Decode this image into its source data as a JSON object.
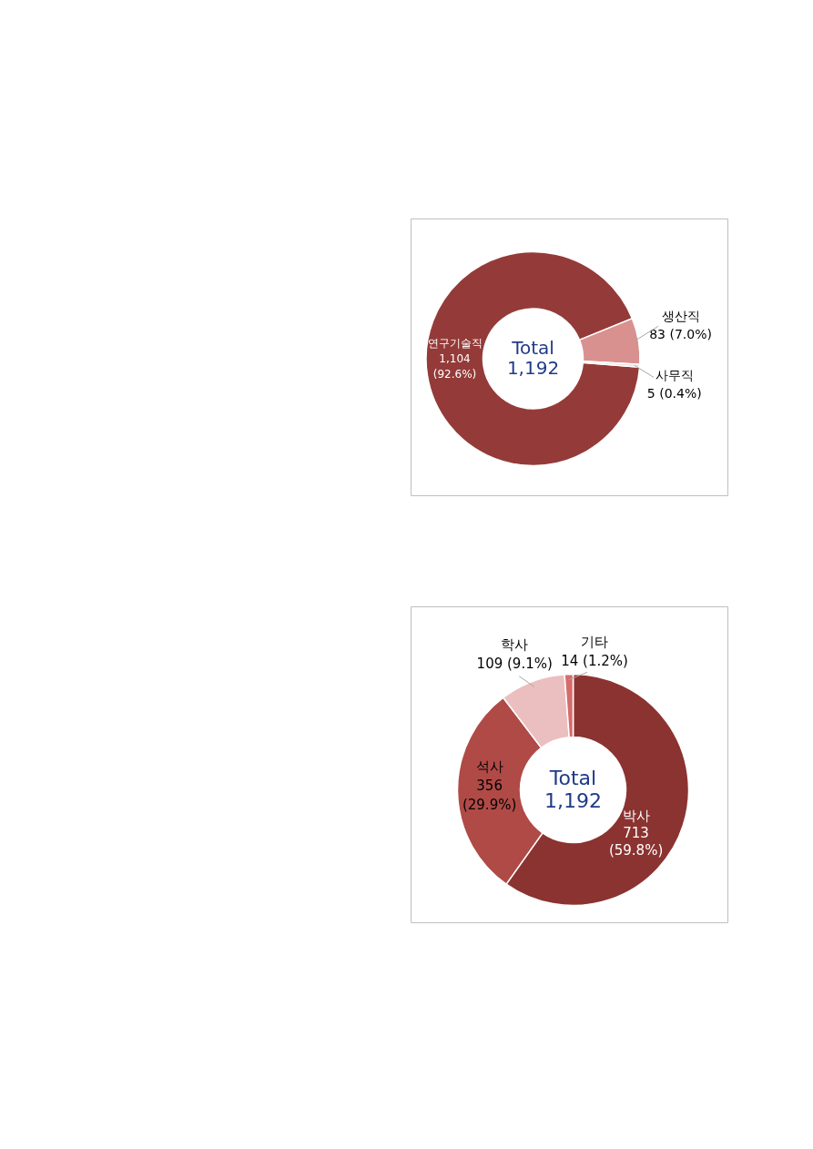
{
  "chart_data": [
    {
      "type": "donut",
      "categories": [
        "연구기술직",
        "생산직",
        "사무직"
      ],
      "values": [
        1104,
        83,
        5
      ],
      "colors": [
        "#943b39",
        "#d9918f",
        "#f2d9d8"
      ],
      "value_labels": [
        "1,104\n(92.6%)",
        "83 (7.0%)",
        "5 (0.4%)"
      ],
      "annotations": [
        "Total\n1,192"
      ]
    },
    {
      "type": "donut",
      "categories": [
        "박사",
        "석사",
        "학사",
        "기타"
      ],
      "values": [
        713,
        356,
        109,
        14
      ],
      "colors": [
        "#8b3331",
        "#b04a47",
        "#ebbfbf",
        "#d56b6b"
      ],
      "value_labels": [
        "713\n(59.8%)",
        "356\n(29.9%)",
        "109 (9.1%)",
        "14 (1.2%)"
      ],
      "annotations": [
        "Total\n1,192"
      ]
    }
  ]
}
